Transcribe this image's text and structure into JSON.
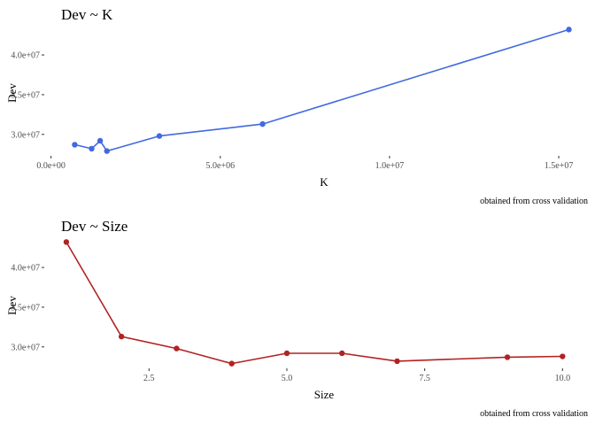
{
  "chart_data": [
    {
      "type": "line",
      "title": "Dev ~ K",
      "xlabel": "K",
      "ylabel": "Dev",
      "caption": "obtained from cross validation",
      "color": "#4169E1",
      "xlim": [
        -200000.0,
        15600000.0
      ],
      "ylim": [
        27300000.0,
        43800000.0
      ],
      "x_ticks": [
        {
          "value": 0,
          "label": "0.0e+00"
        },
        {
          "value": 5000000,
          "label": "5.0e+06"
        },
        {
          "value": 10000000,
          "label": "1.0e+07"
        },
        {
          "value": 15000000,
          "label": "1.5e+07"
        }
      ],
      "y_ticks": [
        {
          "value": 30000000,
          "label": "3.0e+07"
        },
        {
          "value": 35000000,
          "label": "3.5e+07"
        },
        {
          "value": 40000000,
          "label": "4.0e+07"
        }
      ],
      "grid": false,
      "points": [
        {
          "x": 700000,
          "y": 28700000
        },
        {
          "x": 1200000,
          "y": 28200000
        },
        {
          "x": 1450000,
          "y": 29200000
        },
        {
          "x": 1650000,
          "y": 27900000
        },
        {
          "x": 3200000,
          "y": 29800000
        },
        {
          "x": 6250000,
          "y": 31300000
        },
        {
          "x": 15300000,
          "y": 43200000
        }
      ]
    },
    {
      "type": "line",
      "title": "Dev ~ Size",
      "xlabel": "Size",
      "ylabel": "Dev",
      "caption": "obtained from cross validation",
      "color": "#B22222",
      "xlim": [
        0.6,
        10.3
      ],
      "ylim": [
        27300000.0,
        43800000.0
      ],
      "x_ticks": [
        {
          "value": 2.5,
          "label": "2.5"
        },
        {
          "value": 5,
          "label": "5.0"
        },
        {
          "value": 7.5,
          "label": "7.5"
        },
        {
          "value": 10,
          "label": "10.0"
        }
      ],
      "y_ticks": [
        {
          "value": 30000000,
          "label": "3.0e+07"
        },
        {
          "value": 35000000,
          "label": "3.5e+07"
        },
        {
          "value": 40000000,
          "label": "4.0e+07"
        }
      ],
      "grid": false,
      "points": [
        {
          "x": 1,
          "y": 43200000
        },
        {
          "x": 2,
          "y": 31300000
        },
        {
          "x": 3,
          "y": 29800000
        },
        {
          "x": 4,
          "y": 27900000
        },
        {
          "x": 5,
          "y": 29200000
        },
        {
          "x": 6,
          "y": 29200000
        },
        {
          "x": 7,
          "y": 28200000
        },
        {
          "x": 9,
          "y": 28700000
        },
        {
          "x": 10,
          "y": 28800000
        }
      ]
    }
  ]
}
